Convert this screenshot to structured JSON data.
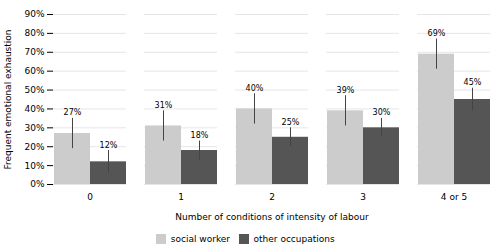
{
  "chart_data": {
    "type": "bar",
    "xlabel": "Number of conditions of intensity of labour",
    "ylabel": "Frequent emotional exhaustion",
    "categories": [
      "0",
      "1",
      "2",
      "3",
      "4 or 5"
    ],
    "series": [
      {
        "name": "social worker",
        "color": "#cccccc",
        "values": [
          27,
          31,
          40,
          39,
          69
        ],
        "value_labels": [
          "27%",
          "31%",
          "40%",
          "39%",
          "69%"
        ],
        "yerr": [
          8,
          8,
          8,
          8,
          8
        ]
      },
      {
        "name": "other occupations",
        "color": "#555555",
        "values": [
          12,
          18,
          25,
          30,
          45
        ],
        "value_labels": [
          "12%",
          "18%",
          "25%",
          "30%",
          "45%"
        ],
        "yerr": [
          6,
          5,
          5,
          5,
          6
        ]
      }
    ],
    "ylim": [
      0,
      90
    ],
    "yticks": [
      {
        "value": 0,
        "label": "0%"
      },
      {
        "value": 10,
        "label": "10%"
      },
      {
        "value": 20,
        "label": "20%"
      },
      {
        "value": 30,
        "label": "30%"
      },
      {
        "value": 40,
        "label": "40%"
      },
      {
        "value": 50,
        "label": "50%"
      },
      {
        "value": 60,
        "label": "60%"
      },
      {
        "value": 70,
        "label": "70%"
      },
      {
        "value": 80,
        "label": "80%"
      },
      {
        "value": 90,
        "label": "90%"
      }
    ],
    "grid": true,
    "legend": "bottom",
    "data_labels": true
  }
}
